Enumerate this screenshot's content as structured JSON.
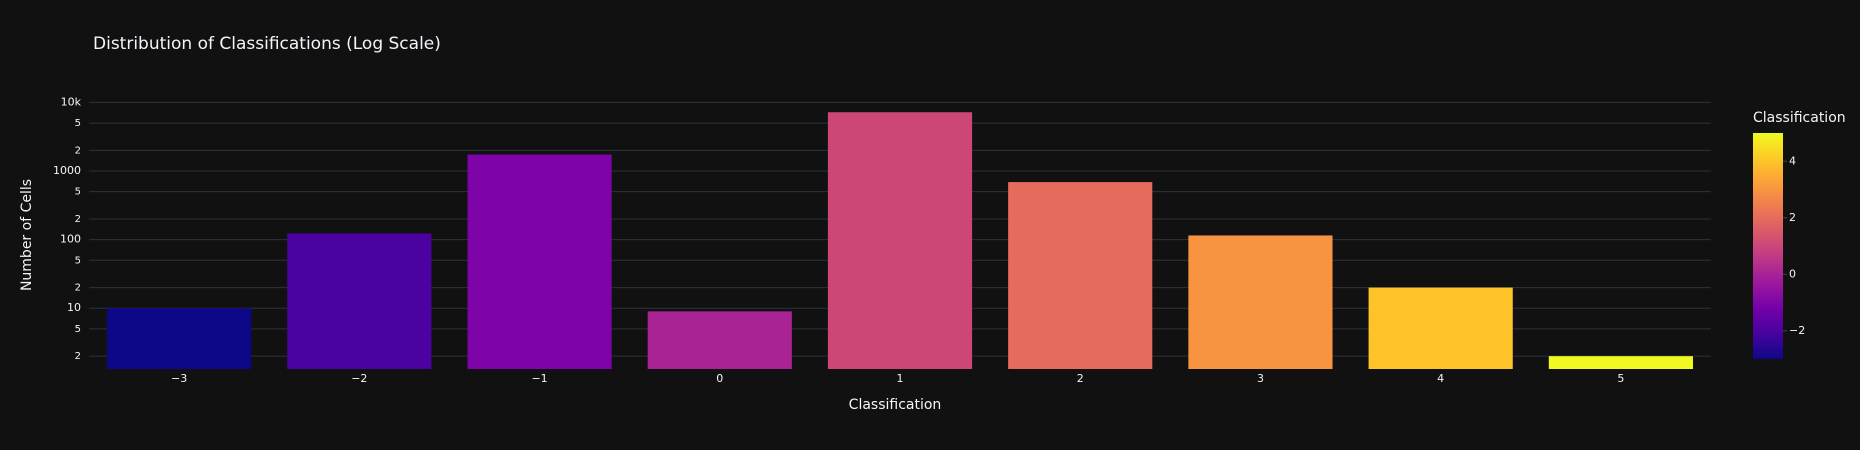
{
  "chart_data": {
    "type": "bar",
    "title": "Distribution of Classifications (Log Scale)",
    "x_label": "Classification",
    "y_label": "Number of Cells",
    "categories": [
      "−3",
      "−2",
      "−1",
      "0",
      "1",
      "2",
      "3",
      "4",
      "5"
    ],
    "values": [
      10,
      123,
      1740,
      9,
      7200,
      690,
      115,
      20,
      2
    ],
    "colors": [
      "#0d0887",
      "#4c02a1",
      "#7e03a8",
      "#a92395",
      "#cc4778",
      "#e56b5d",
      "#f89441",
      "#fdc328",
      "#f0f921"
    ],
    "log_y": true,
    "ylim": [
      1.3,
      12000
    ],
    "yticks": [
      {
        "value": 10000,
        "label": "10k"
      },
      {
        "value": 5000,
        "label": "5"
      },
      {
        "value": 2000,
        "label": "2"
      },
      1000,
      {
        "value": 500,
        "label": "5"
      },
      {
        "value": 200,
        "label": "2"
      },
      100,
      {
        "value": 50,
        "label": "5"
      },
      {
        "value": 20,
        "label": "2"
      },
      10,
      5,
      2
    ],
    "grid": true,
    "colorbar": {
      "title": "Classification",
      "range": [
        -3,
        5
      ],
      "colorscale": [
        "#0d0887",
        "#46039f",
        "#7201a8",
        "#9c179e",
        "#bd3786",
        "#d8576b",
        "#ed7953",
        "#fb9f3a",
        "#fdca26",
        "#f0f921"
      ],
      "ticks": [
        {
          "value": -2,
          "label": "−2"
        },
        0,
        2,
        4
      ]
    }
  }
}
